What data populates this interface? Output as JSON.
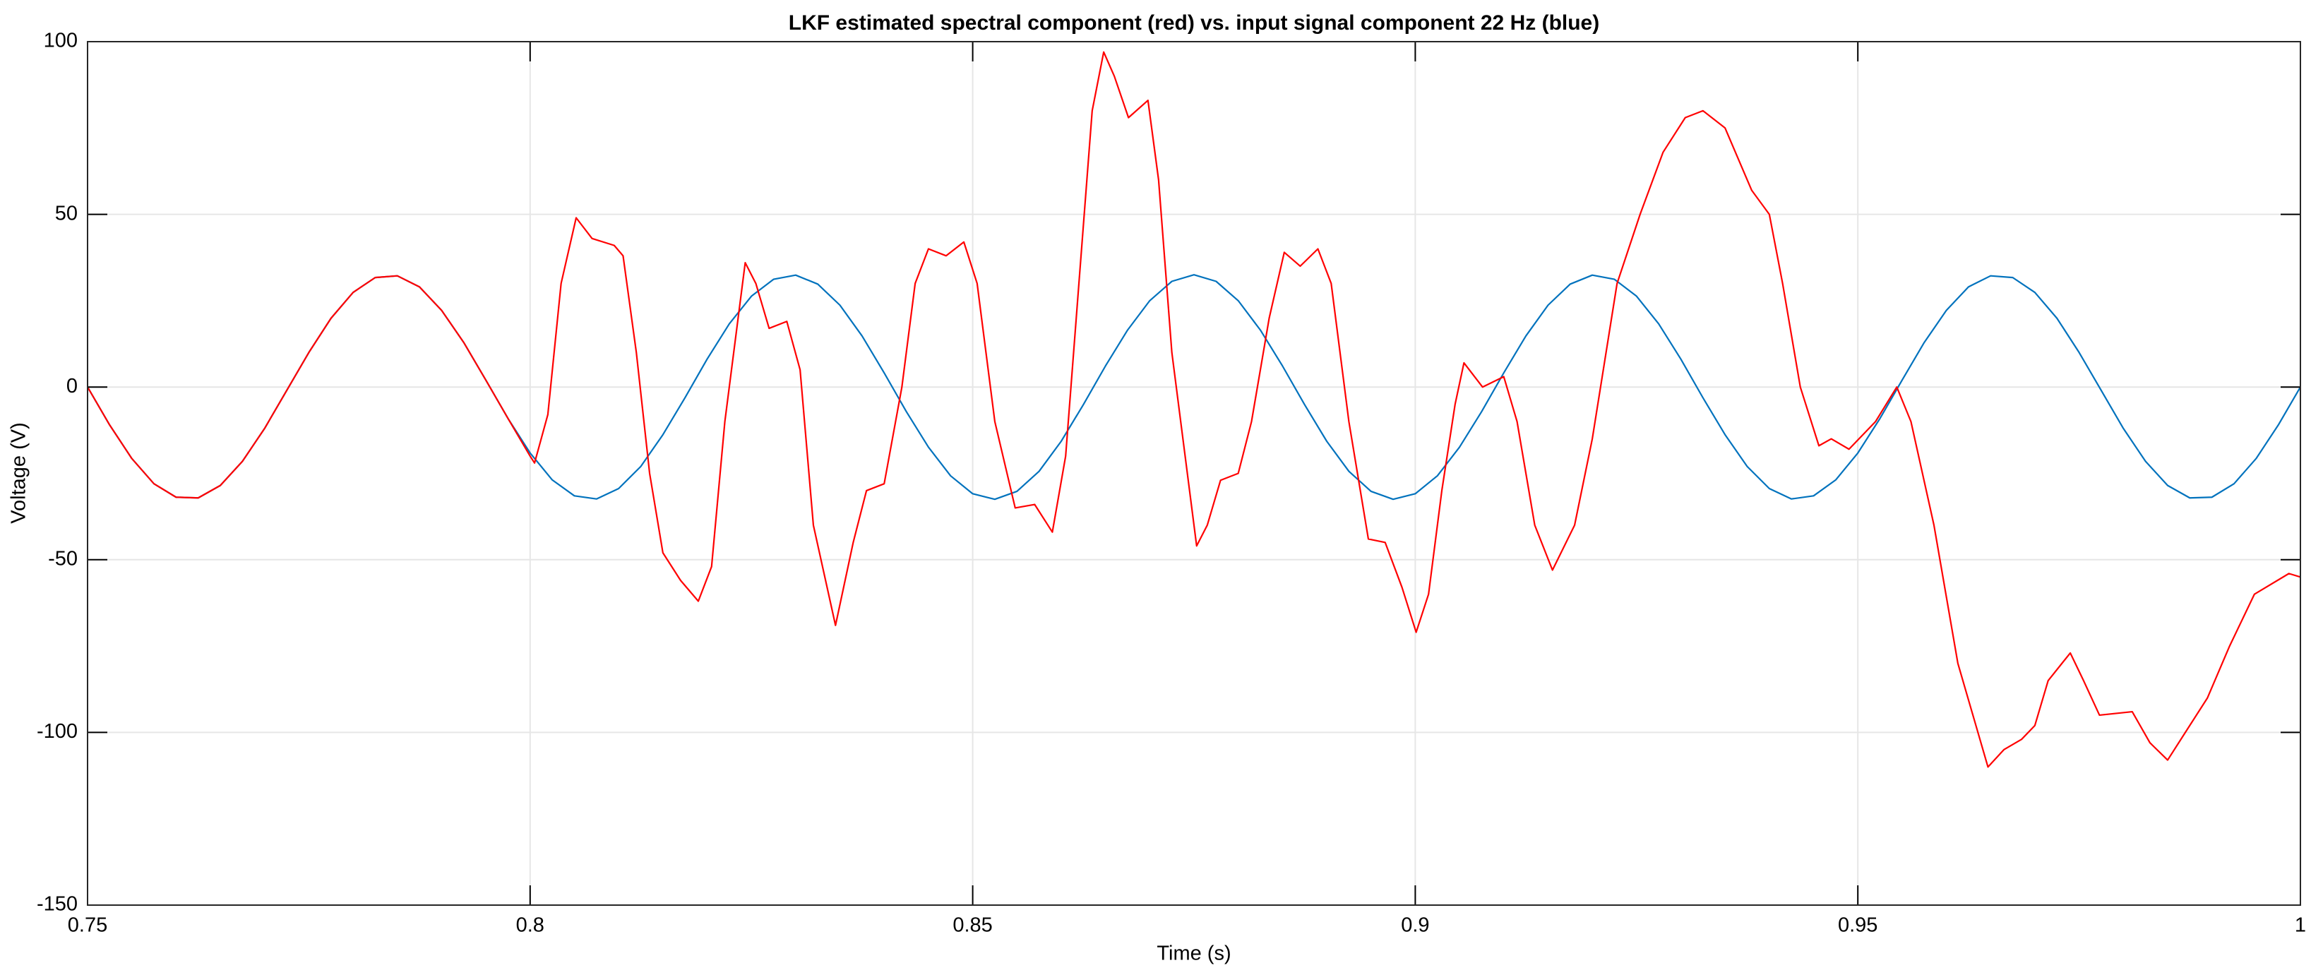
{
  "chart_data": {
    "type": "line",
    "title": "LKF estimated spectral component (red) vs. input signal component 22 Hz (blue)",
    "x_label": "Time (s)",
    "y_label": "Voltage (V)",
    "xlim": [
      0.75,
      1
    ],
    "ylim": [
      -150,
      100
    ],
    "xticks": [
      0.75,
      0.8,
      0.85,
      0.9,
      0.95,
      1
    ],
    "yticks": [
      -150,
      -100,
      -50,
      0,
      50,
      100
    ],
    "grid": true,
    "series": [
      {
        "color": "#0072bd",
        "x": [
          0.75,
          0.7525,
          0.755,
          0.7575,
          0.76,
          0.7625,
          0.765,
          0.7675,
          0.77,
          0.7725,
          0.775,
          0.7775,
          0.78,
          0.7825,
          0.785,
          0.7875,
          0.79,
          0.7925,
          0.795,
          0.7975,
          0.8,
          0.8025,
          0.805,
          0.8075,
          0.81,
          0.8125,
          0.815,
          0.8175,
          0.82,
          0.8225,
          0.825,
          0.8275,
          0.83,
          0.8325,
          0.835,
          0.8375,
          0.84,
          0.8425,
          0.845,
          0.8475,
          0.85,
          0.8525,
          0.855,
          0.8575,
          0.86,
          0.8625,
          0.865,
          0.8675,
          0.87,
          0.8725,
          0.875,
          0.8775,
          0.88,
          0.8825,
          0.885,
          0.8875,
          0.89,
          0.8925,
          0.895,
          0.8975,
          0.9,
          0.9025,
          0.905,
          0.9075,
          0.91,
          0.9125,
          0.915,
          0.9175,
          0.92,
          0.9225,
          0.925,
          0.9275,
          0.93,
          0.9325,
          0.935,
          0.9375,
          0.94,
          0.9425,
          0.945,
          0.9475,
          0.95,
          0.9525,
          0.955,
          0.9575,
          0.96,
          0.9625,
          0.965,
          0.9675,
          0.97,
          0.9725,
          0.975,
          0.9775,
          0.98,
          0.9825,
          0.985,
          0.9875,
          0.99,
          0.9925,
          0.995,
          0.9975,
          1
        ],
        "values": [
          0,
          -11,
          -20.7,
          -28,
          -31.9,
          -32.1,
          -28.5,
          -21.5,
          -12,
          -1,
          10,
          19.9,
          27.4,
          31.7,
          32.2,
          29,
          22.2,
          12.9,
          2,
          -9.1,
          -19.1,
          -26.9,
          -31.5,
          -32.4,
          -29.4,
          -23,
          -13.8,
          -3.1,
          8.1,
          18.3,
          26.3,
          31.2,
          32.4,
          29.8,
          23.7,
          14.8,
          4.1,
          -7.1,
          -17.4,
          -25.7,
          -30.9,
          -32.5,
          -30.2,
          -24.4,
          -15.7,
          -5.1,
          6.1,
          16.5,
          25,
          30.6,
          32.5,
          30.6,
          25,
          16.5,
          6.1,
          -5.1,
          -15.7,
          -24.4,
          -30.2,
          -32.5,
          -30.9,
          -25.7,
          -17.4,
          -7.1,
          4.1,
          14.8,
          23.7,
          29.8,
          32.4,
          31.2,
          26.3,
          18.3,
          8.1,
          -3.1,
          -13.8,
          -23,
          -29.4,
          -32.4,
          -31.5,
          -26.9,
          -19.1,
          -9.1,
          2,
          12.9,
          22.2,
          29,
          32.2,
          31.7,
          27.4,
          19.9,
          10,
          -1,
          -12,
          -21.5,
          -28.5,
          -32.1,
          -31.9,
          -28,
          -20.7,
          -11,
          0
        ]
      },
      {
        "color": "#ff0000",
        "x": [
          0.75,
          0.7525,
          0.755,
          0.7575,
          0.76,
          0.7625,
          0.765,
          0.7675,
          0.77,
          0.7725,
          0.775,
          0.7775,
          0.78,
          0.7825,
          0.785,
          0.7875,
          0.79,
          0.7925,
          0.795,
          0.7975,
          0.8,
          0.8005,
          0.802,
          0.8035,
          0.8052,
          0.807,
          0.8095,
          0.8105,
          0.812,
          0.8135,
          0.815,
          0.817,
          0.819,
          0.8205,
          0.822,
          0.8243,
          0.8255,
          0.827,
          0.829,
          0.8305,
          0.832,
          0.8345,
          0.8365,
          0.838,
          0.84,
          0.842,
          0.8435,
          0.845,
          0.847,
          0.849,
          0.8505,
          0.8525,
          0.8548,
          0.857,
          0.859,
          0.8605,
          0.862,
          0.8635,
          0.8648,
          0.866,
          0.8676,
          0.8698,
          0.871,
          0.8725,
          0.8753,
          0.8765,
          0.878,
          0.88,
          0.8815,
          0.8835,
          0.8852,
          0.887,
          0.889,
          0.8905,
          0.8925,
          0.8947,
          0.8966,
          0.8985,
          0.9001,
          0.9015,
          0.903,
          0.9045,
          0.9055,
          0.9076,
          0.91,
          0.9115,
          0.9135,
          0.9155,
          0.918,
          0.92,
          0.9228,
          0.9254,
          0.928,
          0.9305,
          0.9325,
          0.935,
          0.938,
          0.94,
          0.9415,
          0.9435,
          0.9456,
          0.947,
          0.949,
          0.952,
          0.9544,
          0.956,
          0.9586,
          0.9613,
          0.9647,
          0.9665,
          0.9685,
          0.97,
          0.9715,
          0.974,
          0.9755,
          0.9773,
          0.981,
          0.983,
          0.985,
          0.987,
          0.9895,
          0.992,
          0.9948,
          0.9987,
          1
        ],
        "values": [
          0,
          -11,
          -20.7,
          -28,
          -31.9,
          -32.1,
          -28.5,
          -21.5,
          -12,
          -1,
          10,
          19.9,
          27.4,
          31.7,
          32.2,
          29,
          22.2,
          12.9,
          2,
          -9.1,
          -20,
          -22,
          -8,
          30,
          49,
          43,
          41,
          38,
          10,
          -25,
          -48,
          -56,
          -62,
          -52,
          -10,
          36,
          30,
          17,
          19,
          5,
          -40,
          -69,
          -45,
          -30,
          -28,
          0,
          30,
          40,
          38,
          42,
          30,
          -10,
          -35,
          -34,
          -42,
          -20,
          30,
          80,
          97,
          90,
          78,
          83,
          60,
          10,
          -46,
          -40,
          -27,
          -25,
          -10,
          20,
          39,
          35,
          40,
          30,
          -10,
          -44,
          -45,
          -58,
          -71,
          -60,
          -30,
          -5,
          7,
          0,
          3,
          -10,
          -40,
          -53,
          -40,
          -15,
          30,
          50,
          68,
          78,
          80,
          75,
          57,
          50,
          30,
          0,
          -17,
          -15,
          -18,
          -10,
          0,
          -10,
          -40,
          -80,
          -110,
          -105,
          -102,
          -98,
          -85,
          -77,
          -85,
          -95,
          -94,
          -103,
          -108,
          -100,
          -90,
          -75,
          -60,
          -54,
          -55
        ]
      }
    ]
  }
}
